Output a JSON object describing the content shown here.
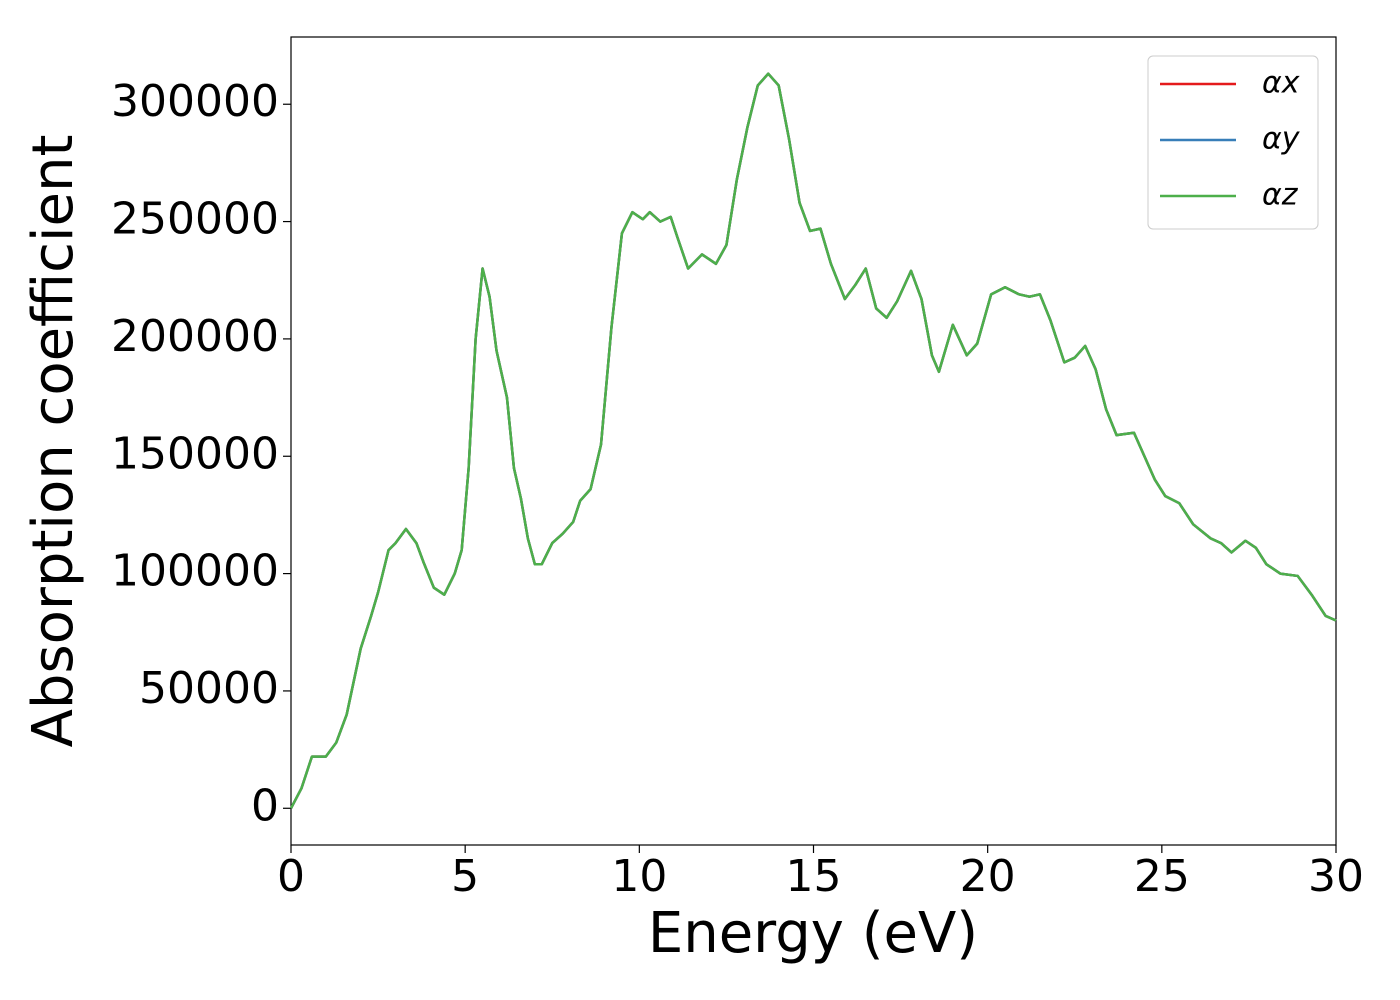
{
  "chart_data": {
    "type": "line",
    "xlabel": "Energy (eV)",
    "ylabel": "Absorption coefficient",
    "xlim": [
      0,
      30
    ],
    "ylim": [
      -15650,
      328650
    ],
    "xticks": [
      0,
      5,
      10,
      15,
      20,
      25,
      30
    ],
    "yticks": [
      0,
      50000,
      100000,
      150000,
      200000,
      250000,
      300000
    ],
    "grid": false,
    "legend": "upper right",
    "x": [
      0,
      0.3,
      0.6,
      1.0,
      1.3,
      1.6,
      2.0,
      2.3,
      2.5,
      2.8,
      3.0,
      3.3,
      3.6,
      3.8,
      4.1,
      4.4,
      4.7,
      4.9,
      5.1,
      5.3,
      5.5,
      5.7,
      5.9,
      6.2,
      6.4,
      6.6,
      6.8,
      7.0,
      7.2,
      7.5,
      7.8,
      8.1,
      8.3,
      8.6,
      8.9,
      9.2,
      9.5,
      9.8,
      10.1,
      10.3,
      10.6,
      10.9,
      11.1,
      11.4,
      11.8,
      12.2,
      12.5,
      12.8,
      13.1,
      13.4,
      13.7,
      14.0,
      14.3,
      14.6,
      14.9,
      15.2,
      15.5,
      15.9,
      16.2,
      16.5,
      16.8,
      17.1,
      17.4,
      17.8,
      18.1,
      18.4,
      18.6,
      19.0,
      19.4,
      19.7,
      20.1,
      20.5,
      20.9,
      21.2,
      21.5,
      21.8,
      22.2,
      22.5,
      22.8,
      23.1,
      23.4,
      23.7,
      24.2,
      24.5,
      24.8,
      25.1,
      25.5,
      25.9,
      26.4,
      26.7,
      27.0,
      27.4,
      27.7,
      28.0,
      28.4,
      28.9,
      29.3,
      29.7,
      30.0
    ],
    "series": [
      {
        "name": "αx",
        "color": "#e41a1c",
        "values": [
          0,
          8500,
          22000,
          22000,
          28000,
          40000,
          68000,
          82000,
          92000,
          110000,
          113000,
          119000,
          113000,
          105000,
          94000,
          91000,
          100000,
          110000,
          145000,
          200000,
          230000,
          218000,
          195000,
          175000,
          145000,
          132000,
          115000,
          104000,
          104000,
          113000,
          117000,
          122000,
          131000,
          136000,
          155000,
          205000,
          245000,
          254000,
          251000,
          254000,
          250000,
          252000,
          243000,
          230000,
          236000,
          232000,
          240000,
          268000,
          290000,
          308000,
          313000,
          308000,
          285000,
          258000,
          246000,
          247000,
          232000,
          217000,
          223000,
          230000,
          213000,
          209000,
          216000,
          229000,
          217000,
          193000,
          186000,
          206000,
          193000,
          198000,
          219000,
          222000,
          219000,
          218000,
          219000,
          208000,
          190000,
          192000,
          197000,
          187000,
          170000,
          159000,
          160000,
          150000,
          140000,
          133000,
          130000,
          121000,
          115000,
          113000,
          109000,
          114000,
          111000,
          104000,
          100000,
          99000,
          91000,
          82000,
          80000
        ]
      },
      {
        "name": "αy",
        "color": "#377eb8",
        "values": [
          0,
          8500,
          22000,
          22000,
          28000,
          40000,
          68000,
          82000,
          92000,
          110000,
          113000,
          119000,
          113000,
          105000,
          94000,
          91000,
          100000,
          110000,
          145000,
          200000,
          230000,
          218000,
          195000,
          175000,
          145000,
          132000,
          115000,
          104000,
          104000,
          113000,
          117000,
          122000,
          131000,
          136000,
          155000,
          205000,
          245000,
          254000,
          251000,
          254000,
          250000,
          252000,
          243000,
          230000,
          236000,
          232000,
          240000,
          268000,
          290000,
          308000,
          313000,
          308000,
          285000,
          258000,
          246000,
          247000,
          232000,
          217000,
          223000,
          230000,
          213000,
          209000,
          216000,
          229000,
          217000,
          193000,
          186000,
          206000,
          193000,
          198000,
          219000,
          222000,
          219000,
          218000,
          219000,
          208000,
          190000,
          192000,
          197000,
          187000,
          170000,
          159000,
          160000,
          150000,
          140000,
          133000,
          130000,
          121000,
          115000,
          113000,
          109000,
          114000,
          111000,
          104000,
          100000,
          99000,
          91000,
          82000,
          80000
        ]
      },
      {
        "name": "αz",
        "color": "#4daf4a",
        "values": [
          0,
          8500,
          22000,
          22000,
          28000,
          40000,
          68000,
          82000,
          92000,
          110000,
          113000,
          119000,
          113000,
          105000,
          94000,
          91000,
          100000,
          110000,
          145000,
          200000,
          230000,
          218000,
          195000,
          175000,
          145000,
          132000,
          115000,
          104000,
          104000,
          113000,
          117000,
          122000,
          131000,
          136000,
          155000,
          205000,
          245000,
          254000,
          251000,
          254000,
          250000,
          252000,
          243000,
          230000,
          236000,
          232000,
          240000,
          268000,
          290000,
          308000,
          313000,
          308000,
          285000,
          258000,
          246000,
          247000,
          232000,
          217000,
          223000,
          230000,
          213000,
          209000,
          216000,
          229000,
          217000,
          193000,
          186000,
          206000,
          193000,
          198000,
          219000,
          222000,
          219000,
          218000,
          219000,
          208000,
          190000,
          192000,
          197000,
          187000,
          170000,
          159000,
          160000,
          150000,
          140000,
          133000,
          130000,
          121000,
          115000,
          113000,
          109000,
          114000,
          111000,
          104000,
          100000,
          99000,
          91000,
          82000,
          80000
        ]
      }
    ]
  }
}
